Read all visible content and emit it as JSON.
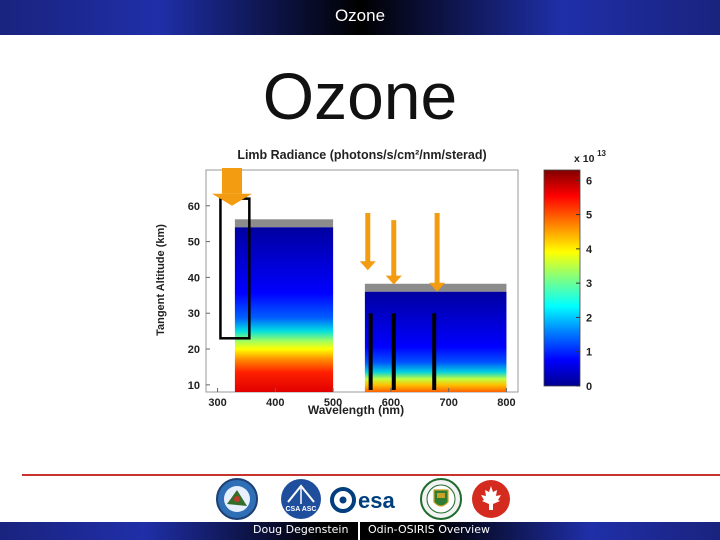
{
  "header": {
    "title": "Ozone"
  },
  "slide": {
    "title": "Ozone"
  },
  "chart_data": {
    "type": "heatmap",
    "title": "Limb Radiance (photons/s/cm²/nm/sterad)",
    "xlabel": "Wavelength (nm)",
    "ylabel": "Tangent Altitude (km)",
    "xlim": [
      280,
      820
    ],
    "ylim": [
      8,
      70
    ],
    "x_ticks": [
      "300",
      "400",
      "500",
      "600",
      "700",
      "800"
    ],
    "y_ticks": [
      "10",
      "20",
      "30",
      "40",
      "50",
      "60"
    ],
    "colorbar": {
      "multiplier": "x 10",
      "exponent": "13",
      "ticks": [
        "0",
        "1",
        "2",
        "3",
        "4",
        "5",
        "6"
      ],
      "range": [
        0,
        6.3
      ]
    },
    "colorscale": [
      "#00008f",
      "#0000ff",
      "#0080ff",
      "#00ffff",
      "#80ff80",
      "#ffff00",
      "#ff8000",
      "#ff0000",
      "#800000"
    ],
    "segments": [
      {
        "x_start": 330,
        "x_end": 500,
        "top_altitude": 54
      },
      {
        "x_start": 555,
        "x_end": 800,
        "top_altitude": 36
      }
    ],
    "annotations": {
      "arrows_wavelength": [
        325,
        560,
        605,
        680
      ],
      "bracket": {
        "x_start": 305,
        "x_end": 355,
        "y_min": 23,
        "y_max": 62
      },
      "lines_wavelength": [
        565,
        605,
        675
      ]
    }
  },
  "footer": {
    "author": "Doug Degenstein",
    "presentation": "Odin-OSIRIS Overview",
    "logos": [
      "odin-logo",
      "csa-asc-logo",
      "esa-logo",
      "university-of-saskatchewan-logo",
      "canada-maple-leaf-logo"
    ],
    "esa_text": "esa",
    "csa_text": "CSA ASC"
  }
}
